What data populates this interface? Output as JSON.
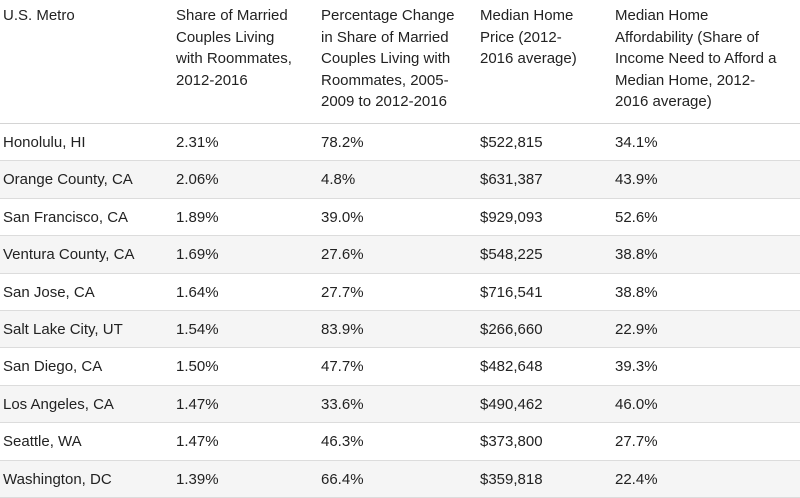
{
  "table": {
    "headers": [
      [
        "U.S. Metro"
      ],
      [
        "Share of Married",
        "Couples Living",
        "with Roommates,",
        "2012-2016"
      ],
      [
        "Percentage Change",
        "in Share of Married",
        "Couples Living with",
        "Roommates, 2005-",
        "2009 to 2012-2016"
      ],
      [
        "Median Home",
        "Price (2012-",
        "2016 average)"
      ],
      [
        "Median Home",
        "Affordability (Share of",
        "Income Need to Afford a",
        "Median Home, 2012-",
        "2016 average)"
      ]
    ],
    "rows": [
      [
        "Honolulu, HI",
        "2.31%",
        "78.2%",
        "$522,815",
        "34.1%"
      ],
      [
        "Orange County, CA",
        "2.06%",
        "4.8%",
        "$631,387",
        "43.9%"
      ],
      [
        "San Francisco, CA",
        "1.89%",
        "39.0%",
        "$929,093",
        "52.6%"
      ],
      [
        "Ventura County, CA",
        "1.69%",
        "27.6%",
        "$548,225",
        "38.8%"
      ],
      [
        "San Jose, CA",
        "1.64%",
        "27.7%",
        "$716,541",
        "38.8%"
      ],
      [
        "Salt Lake City, UT",
        "1.54%",
        "83.9%",
        "$266,660",
        "22.9%"
      ],
      [
        "San Diego, CA",
        "1.50%",
        "47.7%",
        "$482,648",
        "39.3%"
      ],
      [
        "Los Angeles, CA",
        "1.47%",
        "33.6%",
        "$490,462",
        "46.0%"
      ],
      [
        "Seattle, WA",
        "1.47%",
        "46.3%",
        "$373,800",
        "27.7%"
      ],
      [
        "Washington, DC",
        "1.39%",
        "66.4%",
        "$359,818",
        "22.4%"
      ]
    ]
  }
}
